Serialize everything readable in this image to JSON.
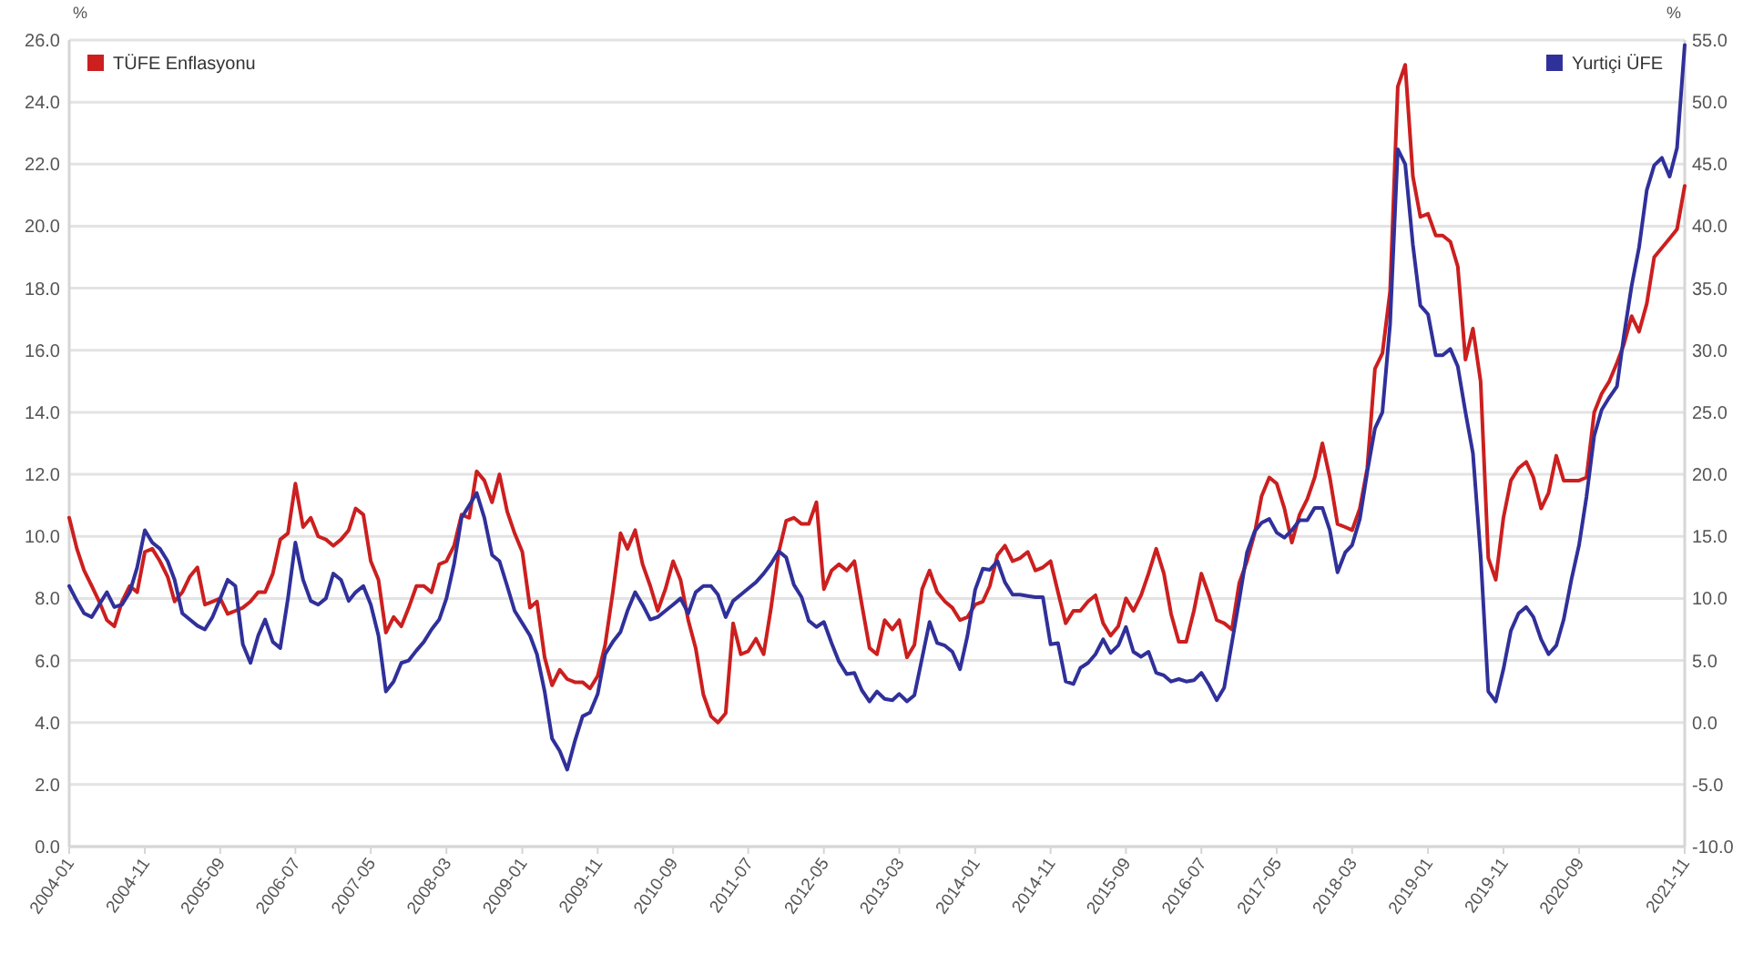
{
  "chart_data": {
    "type": "line",
    "ylabel": "%",
    "y2label": "%",
    "x": [
      "2004-01",
      "2004-02",
      "2004-03",
      "2004-04",
      "2004-05",
      "2004-06",
      "2004-07",
      "2004-08",
      "2004-09",
      "2004-10",
      "2004-11",
      "2004-12",
      "2005-01",
      "2005-02",
      "2005-03",
      "2005-04",
      "2005-05",
      "2005-06",
      "2005-07",
      "2005-08",
      "2005-09",
      "2005-10",
      "2005-11",
      "2005-12",
      "2006-01",
      "2006-02",
      "2006-03",
      "2006-04",
      "2006-05",
      "2006-06",
      "2006-07",
      "2006-08",
      "2006-09",
      "2006-10",
      "2006-11",
      "2006-12",
      "2007-01",
      "2007-02",
      "2007-03",
      "2007-04",
      "2007-05",
      "2007-06",
      "2007-07",
      "2007-08",
      "2007-09",
      "2007-10",
      "2007-11",
      "2007-12",
      "2008-01",
      "2008-02",
      "2008-03",
      "2008-04",
      "2008-05",
      "2008-06",
      "2008-07",
      "2008-08",
      "2008-09",
      "2008-10",
      "2008-11",
      "2008-12",
      "2009-01",
      "2009-02",
      "2009-03",
      "2009-04",
      "2009-05",
      "2009-06",
      "2009-07",
      "2009-08",
      "2009-09",
      "2009-10",
      "2009-11",
      "2009-12",
      "2010-01",
      "2010-02",
      "2010-03",
      "2010-04",
      "2010-05",
      "2010-06",
      "2010-07",
      "2010-08",
      "2010-09",
      "2010-10",
      "2010-11",
      "2010-12",
      "2011-01",
      "2011-02",
      "2011-03",
      "2011-04",
      "2011-05",
      "2011-06",
      "2011-07",
      "2011-08",
      "2011-09",
      "2011-10",
      "2011-11",
      "2011-12",
      "2012-01",
      "2012-02",
      "2012-03",
      "2012-04",
      "2012-05",
      "2012-06",
      "2012-07",
      "2012-08",
      "2012-09",
      "2012-10",
      "2012-11",
      "2012-12",
      "2013-01",
      "2013-02",
      "2013-03",
      "2013-04",
      "2013-05",
      "2013-06",
      "2013-07",
      "2013-08",
      "2013-09",
      "2013-10",
      "2013-11",
      "2013-12",
      "2014-01",
      "2014-02",
      "2014-03",
      "2014-04",
      "2014-05",
      "2014-06",
      "2014-07",
      "2014-08",
      "2014-09",
      "2014-10",
      "2014-11",
      "2014-12",
      "2015-01",
      "2015-02",
      "2015-03",
      "2015-04",
      "2015-05",
      "2015-06",
      "2015-07",
      "2015-08",
      "2015-09",
      "2015-10",
      "2015-11",
      "2015-12",
      "2016-01",
      "2016-02",
      "2016-03",
      "2016-04",
      "2016-05",
      "2016-06",
      "2016-07",
      "2016-08",
      "2016-09",
      "2016-10",
      "2016-11",
      "2016-12",
      "2017-01",
      "2017-02",
      "2017-03",
      "2017-04",
      "2017-05",
      "2017-06",
      "2017-07",
      "2017-08",
      "2017-09",
      "2017-10",
      "2017-11",
      "2017-12",
      "2018-01",
      "2018-02",
      "2018-03",
      "2018-04",
      "2018-05",
      "2018-06",
      "2018-07",
      "2018-08",
      "2018-09",
      "2018-10",
      "2018-11",
      "2018-12",
      "2019-01",
      "2019-02",
      "2019-03",
      "2019-04",
      "2019-05",
      "2019-06",
      "2019-07",
      "2019-08",
      "2019-09",
      "2019-10",
      "2019-11",
      "2019-12",
      "2020-01",
      "2020-02",
      "2020-03",
      "2020-04",
      "2020-05",
      "2020-06",
      "2020-07",
      "2020-08",
      "2020-09",
      "2020-10",
      "2020-11",
      "2020-12",
      "2021-01",
      "2021-02",
      "2021-03",
      "2021-04",
      "2021-05",
      "2021-06",
      "2021-07",
      "2021-08",
      "2021-09",
      "2021-10",
      "2021-11"
    ],
    "series": [
      {
        "name": "TÜFE Enflasyonu",
        "color": "#cc1f1f",
        "values": [
          10.6,
          9.6,
          8.9,
          8.4,
          7.9,
          7.3,
          7.1,
          7.9,
          8.4,
          8.2,
          9.5,
          9.6,
          9.2,
          8.7,
          7.9,
          8.2,
          8.7,
          9.0,
          7.8,
          7.9,
          8.0,
          7.5,
          7.6,
          7.7,
          7.9,
          8.2,
          8.2,
          8.8,
          9.9,
          10.1,
          11.7,
          10.3,
          10.6,
          10.0,
          9.9,
          9.7,
          9.9,
          10.2,
          10.9,
          10.7,
          9.2,
          8.6,
          6.9,
          7.4,
          7.1,
          7.7,
          8.4,
          8.4,
          8.2,
          9.1,
          9.2,
          9.7,
          10.7,
          10.6,
          12.1,
          11.8,
          11.1,
          12.0,
          10.8,
          10.1,
          9.5,
          7.7,
          7.9,
          6.1,
          5.2,
          5.7,
          5.4,
          5.3,
          5.3,
          5.1,
          5.5,
          6.5,
          8.2,
          10.1,
          9.6,
          10.2,
          9.1,
          8.4,
          7.6,
          8.3,
          9.2,
          8.6,
          7.3,
          6.4,
          4.9,
          4.2,
          4.0,
          4.3,
          7.2,
          6.2,
          6.3,
          6.7,
          6.2,
          7.7,
          9.5,
          10.5,
          10.6,
          10.4,
          10.4,
          11.1,
          8.3,
          8.9,
          9.1,
          8.9,
          9.2,
          7.8,
          6.4,
          6.2,
          7.3,
          7.0,
          7.3,
          6.1,
          6.5,
          8.3,
          8.9,
          8.2,
          7.9,
          7.7,
          7.3,
          7.4,
          7.8,
          7.9,
          8.4,
          9.4,
          9.7,
          9.2,
          9.3,
          9.5,
          8.9,
          9.0,
          9.2,
          8.2,
          7.2,
          7.6,
          7.6,
          7.9,
          8.1,
          7.2,
          6.8,
          7.1,
          8.0,
          7.6,
          8.1,
          8.8,
          9.6,
          8.8,
          7.5,
          6.6,
          6.6,
          7.6,
          8.8,
          8.1,
          7.3,
          7.2,
          7.0,
          8.5,
          9.2,
          10.1,
          11.3,
          11.9,
          11.7,
          10.9,
          9.8,
          10.7,
          11.2,
          11.9,
          13.0,
          11.9,
          10.4,
          10.3,
          10.2,
          10.9,
          12.2,
          15.4,
          15.9,
          17.9,
          24.5,
          25.2,
          21.6,
          20.3,
          20.4,
          19.7,
          19.7,
          19.5,
          18.7,
          15.7,
          16.7,
          15.0,
          9.3,
          8.6,
          10.6,
          11.8,
          12.2,
          12.4,
          11.9,
          10.9,
          11.4,
          12.6,
          11.8,
          11.8,
          11.8,
          11.9,
          14.0,
          14.6,
          15.0,
          15.6,
          16.2,
          17.1,
          16.6,
          17.5,
          19.0,
          19.3,
          19.6,
          19.9,
          21.3
        ]
      },
      {
        "name": "Yurtiçi ÜFE",
        "color": "#30309a",
        "axis": "y2",
        "values": [
          11.0,
          9.8,
          8.8,
          8.5,
          9.5,
          10.5,
          9.3,
          9.5,
          10.5,
          12.5,
          15.5,
          14.5,
          14.0,
          13.0,
          11.5,
          8.8,
          8.3,
          7.8,
          7.5,
          8.5,
          10.0,
          11.5,
          11.0,
          6.3,
          4.8,
          7.0,
          8.3,
          6.5,
          6.0,
          10.0,
          14.5,
          11.5,
          9.8,
          9.5,
          10.0,
          12.0,
          11.5,
          9.8,
          10.5,
          11.0,
          9.5,
          7.0,
          2.5,
          3.3,
          4.8,
          5.0,
          5.8,
          6.5,
          7.5,
          8.3,
          10.0,
          12.8,
          16.5,
          17.5,
          18.5,
          16.5,
          13.5,
          13.0,
          11.0,
          9.0,
          8.0,
          7.0,
          5.5,
          2.5,
          -1.3,
          -2.3,
          -3.8,
          -1.5,
          0.5,
          0.8,
          2.3,
          5.5,
          6.5,
          7.3,
          9.0,
          10.5,
          9.5,
          8.3,
          8.5,
          9.0,
          9.5,
          10.0,
          8.8,
          10.5,
          11.0,
          11.0,
          10.3,
          8.5,
          9.8,
          10.3,
          10.8,
          11.3,
          12.0,
          12.8,
          13.8,
          13.3,
          11.1,
          10.1,
          8.2,
          7.7,
          8.1,
          6.4,
          4.9,
          3.9,
          4.0,
          2.6,
          1.7,
          2.5,
          1.9,
          1.8,
          2.3,
          1.7,
          2.2,
          5.2,
          8.1,
          6.4,
          6.2,
          5.7,
          4.3,
          7.0,
          10.7,
          12.4,
          12.3,
          13.0,
          11.3,
          10.3,
          10.3,
          10.2,
          10.1,
          10.1,
          6.3,
          6.4,
          3.3,
          3.1,
          4.4,
          4.8,
          5.5,
          6.7,
          5.6,
          6.2,
          7.7,
          5.7,
          5.3,
          5.7,
          4.0,
          3.8,
          3.3,
          3.5,
          3.3,
          3.4,
          4.0,
          3.0,
          1.8,
          2.8,
          6.4,
          9.9,
          13.7,
          15.4,
          16.1,
          16.4,
          15.3,
          14.9,
          15.5,
          16.3,
          16.3,
          17.3,
          17.3,
          15.5,
          12.1,
          13.7,
          14.3,
          16.4,
          20.2,
          23.7,
          25.0,
          32.1,
          46.2,
          45.0,
          38.5,
          33.6,
          32.9,
          29.6,
          29.6,
          30.1,
          28.7,
          25.0,
          21.7,
          13.5,
          2.5,
          1.7,
          4.3,
          7.4,
          8.8,
          9.3,
          8.5,
          6.7,
          5.5,
          6.2,
          8.3,
          11.5,
          14.3,
          18.2,
          23.1,
          25.2,
          26.2,
          27.1,
          31.2,
          35.2,
          38.3,
          42.9,
          44.9,
          45.5,
          44.0,
          46.3,
          54.6
        ]
      }
    ],
    "xlim": [
      "2004-01",
      "2021-11"
    ],
    "xticks": [
      "2004-01",
      "2004-11",
      "2005-09",
      "2006-07",
      "2007-05",
      "2008-03",
      "2009-01",
      "2009-11",
      "2010-09",
      "2011-07",
      "2012-05",
      "2013-03",
      "2014-01",
      "2014-11",
      "2015-09",
      "2016-07",
      "2017-05",
      "2018-03",
      "2019-01",
      "2019-11",
      "2020-09",
      "2021-11"
    ],
    "ylim": [
      0,
      26
    ],
    "yticks": [
      {
        "value": 0,
        "label": "0.0"
      },
      {
        "value": 2,
        "label": "2.0"
      },
      {
        "value": 4,
        "label": "4.0"
      },
      {
        "value": 6,
        "label": "6.0"
      },
      {
        "value": 8,
        "label": "8.0"
      },
      {
        "value": 10,
        "label": "10.0"
      },
      {
        "value": 12,
        "label": "12.0"
      },
      {
        "value": 14,
        "label": "14.0"
      },
      {
        "value": 16,
        "label": "16.0"
      },
      {
        "value": 18,
        "label": "18.0"
      },
      {
        "value": 20,
        "label": "20.0"
      },
      {
        "value": 22,
        "label": "22.0"
      },
      {
        "value": 24,
        "label": "24.0"
      },
      {
        "value": 26,
        "label": "26.0"
      }
    ],
    "y2lim": [
      -10,
      55
    ],
    "y2ticks": [
      {
        "value": -10,
        "label": "-10.0"
      },
      {
        "value": -5,
        "label": "-5.0"
      },
      {
        "value": 0,
        "label": "0.0"
      },
      {
        "value": 5,
        "label": "5.0"
      },
      {
        "value": 10,
        "label": "10.0"
      },
      {
        "value": 15,
        "label": "15.0"
      },
      {
        "value": 20,
        "label": "20.0"
      },
      {
        "value": 25,
        "label": "25.0"
      },
      {
        "value": 30,
        "label": "30.0"
      },
      {
        "value": 35,
        "label": "35.0"
      },
      {
        "value": 40,
        "label": "40.0"
      },
      {
        "value": 45,
        "label": "45.0"
      },
      {
        "value": 50,
        "label": "50.0"
      },
      {
        "value": 55,
        "label": "55.0"
      }
    ],
    "grid": "y",
    "legend": "top",
    "line_style": "solid"
  }
}
